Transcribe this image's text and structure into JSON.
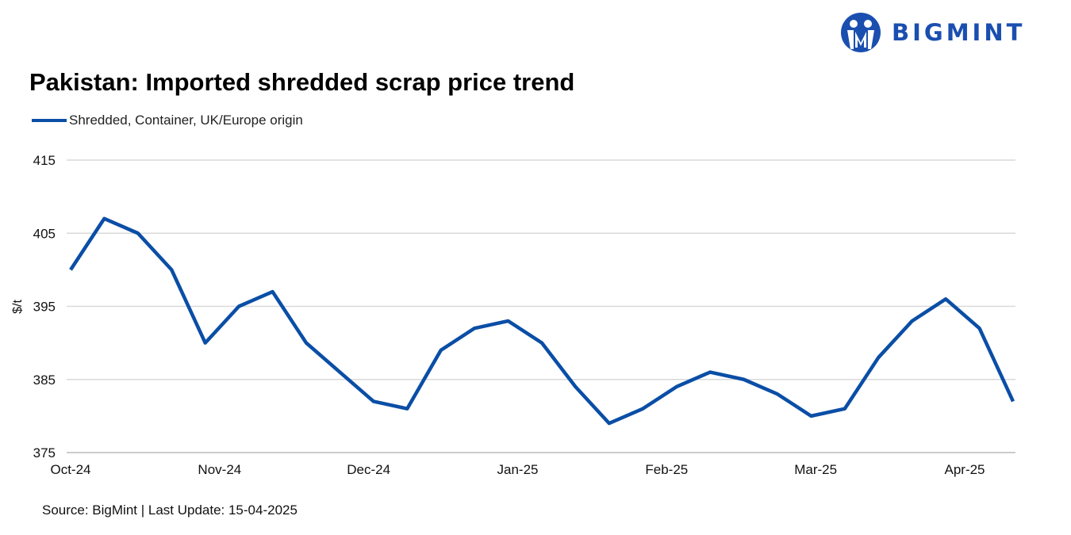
{
  "brand": {
    "name": "BIGMINT",
    "color": "#1a4fb0"
  },
  "chart_data": {
    "type": "line",
    "title": "Pakistan: Imported shredded scrap price trend",
    "ylabel": "$/t",
    "xlabel": "",
    "ylim": [
      375,
      415
    ],
    "yticks": [
      375,
      385,
      395,
      405,
      415
    ],
    "xtick_labels": [
      "Oct-24",
      "Nov-24",
      "Dec-24",
      "Jan-25",
      "Feb-25",
      "Mar-25",
      "Apr-25"
    ],
    "grid": "horizontal",
    "legend_position": "top-left",
    "series": [
      {
        "name": "Shredded, Container, UK/Europe origin",
        "color": "#0a4ea6",
        "values": [
          400,
          407,
          405,
          400,
          390,
          395,
          397,
          390,
          386,
          382,
          381,
          389,
          392,
          393,
          390,
          384,
          379,
          381,
          384,
          386,
          385,
          383,
          380,
          381,
          388,
          393,
          396,
          392,
          382
        ]
      }
    ]
  },
  "source": "Source: BigMint | Last Update: 15-04-2025"
}
